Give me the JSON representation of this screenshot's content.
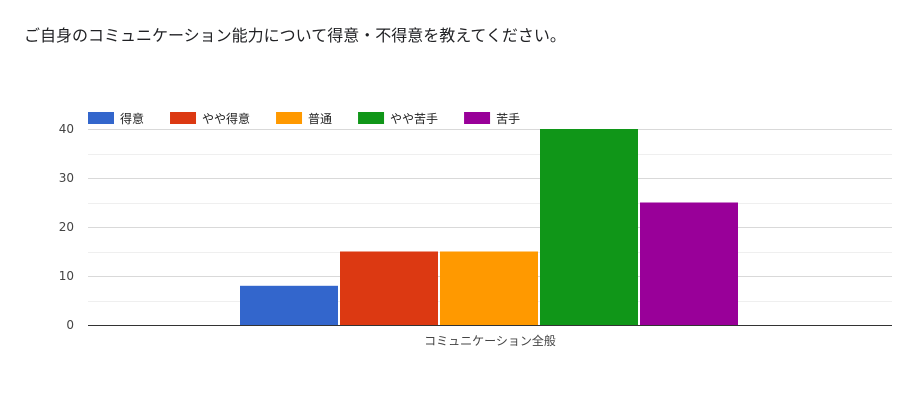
{
  "question": {
    "title": "ご自身のコミュニケーション能力について得意・不得意を教えてください。"
  },
  "chart_data": {
    "type": "bar",
    "categories": [
      "コミュニケーション全般"
    ],
    "series": [
      {
        "name": "得意",
        "values": [
          8
        ],
        "color": "#3366cc"
      },
      {
        "name": "やや得意",
        "values": [
          15
        ],
        "color": "#dc3912"
      },
      {
        "name": "普通",
        "values": [
          15
        ],
        "color": "#ff9900"
      },
      {
        "name": "やや苦手",
        "values": [
          40
        ],
        "color": "#109618"
      },
      {
        "name": "苦手",
        "values": [
          25
        ],
        "color": "#990099"
      }
    ],
    "title": "",
    "xlabel": "",
    "ylabel": "",
    "ylim": [
      0,
      40
    ],
    "yticks": [
      0,
      10,
      20,
      30,
      40
    ],
    "grid": true,
    "legend_position": "top-left"
  }
}
